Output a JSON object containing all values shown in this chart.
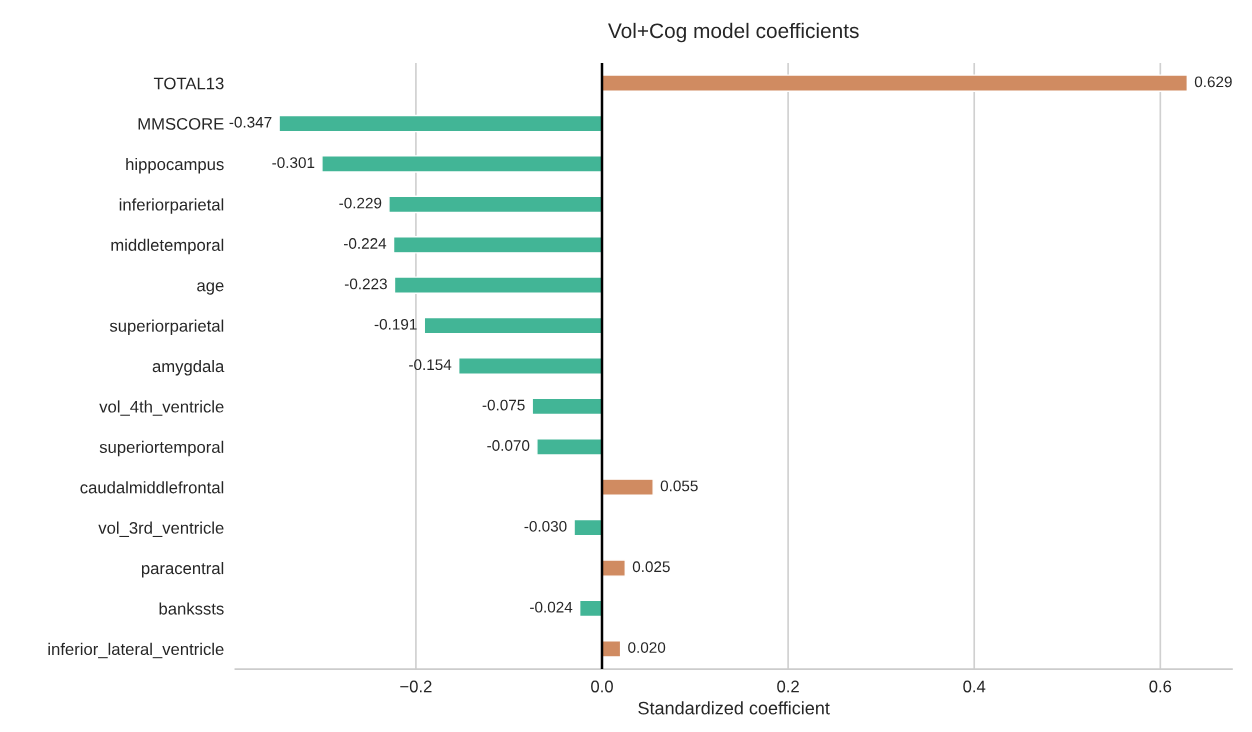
{
  "chart_data": {
    "type": "bar",
    "orientation": "horizontal",
    "title": "Vol+Cog model coefficients",
    "xlabel": "Standardized coefficient",
    "categories": [
      "TOTAL13",
      "MMSCORE",
      "hippocampus",
      "inferiorparietal",
      "middletemporal",
      "age",
      "superiorparietal",
      "amygdala",
      "vol_4th_ventricle",
      "superiortemporal",
      "caudalmiddlefrontal",
      "vol_3rd_ventricle",
      "paracentral",
      "bankssts",
      "inferior_lateral_ventricle"
    ],
    "values": [
      0.629,
      -0.347,
      -0.301,
      -0.229,
      -0.224,
      -0.223,
      -0.191,
      -0.154,
      -0.075,
      -0.07,
      0.055,
      -0.03,
      0.025,
      -0.024,
      0.02
    ],
    "value_labels": [
      "0.629",
      "-0.347",
      "-0.301",
      "-0.229",
      "-0.224",
      "-0.223",
      "-0.191",
      "-0.154",
      "-0.075",
      "-0.070",
      "0.055",
      "-0.030",
      "0.025",
      "-0.024",
      "0.020"
    ],
    "colors": [
      "#d08b61",
      "#42b596",
      "#42b596",
      "#42b596",
      "#42b596",
      "#42b596",
      "#42b596",
      "#42b596",
      "#42b596",
      "#42b596",
      "#d08b61",
      "#42b596",
      "#d08b61",
      "#42b596",
      "#d08b61"
    ],
    "xlim": [
      -0.394,
      0.677
    ],
    "xticks": [
      {
        "value": -0.2,
        "label": "−0.2"
      },
      {
        "value": 0,
        "label": "0.0"
      },
      0.2,
      0.4,
      0.6
    ],
    "ref_lines": [
      {
        "axis": "x",
        "value": 0,
        "color": "#000000"
      }
    ],
    "grid": "x",
    "legend": false
  }
}
